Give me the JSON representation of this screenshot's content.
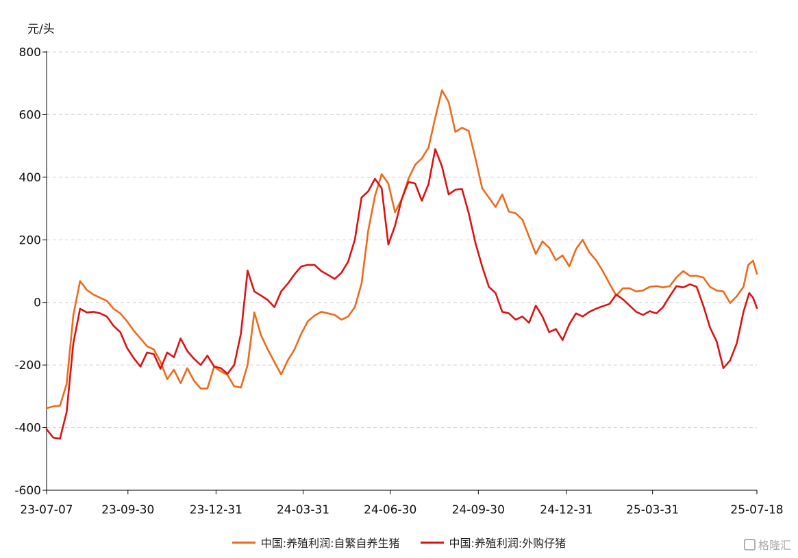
{
  "chart_data": {
    "type": "line",
    "unit_label": "元/头",
    "ylim": [
      -600,
      800
    ],
    "yticks": [
      800,
      600,
      400,
      200,
      0,
      -200,
      -400,
      -600
    ],
    "xlim": [
      "2023-07-07",
      "2025-07-18"
    ],
    "xticks": [
      {
        "date": "2023-07-07",
        "label": "23-07-07"
      },
      {
        "date": "2023-09-30",
        "label": "23-09-30"
      },
      {
        "date": "2023-12-31",
        "label": "23-12-31"
      },
      {
        "date": "2024-03-31",
        "label": "24-03-31"
      },
      {
        "date": "2024-06-30",
        "label": "24-06-30"
      },
      {
        "date": "2024-09-30",
        "label": "24-09-30"
      },
      {
        "date": "2024-12-31",
        "label": "24-12-31"
      },
      {
        "date": "2025-03-31",
        "label": "25-03-31"
      },
      {
        "date": "2025-07-18",
        "label": "25-07-18"
      }
    ],
    "grid": "horizontal-dashed",
    "legend_position": "bottom",
    "series": [
      {
        "name": "中国:养殖利润:自繁自养生猪",
        "color": "#ee6a1a",
        "points": [
          [
            "2023-07-07",
            -338
          ],
          [
            "2023-07-14",
            -332
          ],
          [
            "2023-07-21",
            -330
          ],
          [
            "2023-07-28",
            -260
          ],
          [
            "2023-08-04",
            -40
          ],
          [
            "2023-08-11",
            68
          ],
          [
            "2023-08-18",
            40
          ],
          [
            "2023-08-25",
            25
          ],
          [
            "2023-09-01",
            15
          ],
          [
            "2023-09-08",
            5
          ],
          [
            "2023-09-15",
            -20
          ],
          [
            "2023-09-22",
            -35
          ],
          [
            "2023-09-29",
            -60
          ],
          [
            "2023-10-06",
            -90
          ],
          [
            "2023-10-13",
            -115
          ],
          [
            "2023-10-20",
            -140
          ],
          [
            "2023-10-27",
            -150
          ],
          [
            "2023-11-03",
            -190
          ],
          [
            "2023-11-10",
            -245
          ],
          [
            "2023-11-17",
            -215
          ],
          [
            "2023-11-24",
            -258
          ],
          [
            "2023-12-01",
            -210
          ],
          [
            "2023-12-08",
            -250
          ],
          [
            "2023-12-15",
            -275
          ],
          [
            "2023-12-22",
            -275
          ],
          [
            "2023-12-29",
            -205
          ],
          [
            "2024-01-05",
            -220
          ],
          [
            "2024-01-12",
            -232
          ],
          [
            "2024-01-19",
            -268
          ],
          [
            "2024-01-26",
            -272
          ],
          [
            "2024-02-02",
            -200
          ],
          [
            "2024-02-09",
            -32
          ],
          [
            "2024-02-16",
            -105
          ],
          [
            "2024-02-23",
            -150
          ],
          [
            "2024-03-01",
            -190
          ],
          [
            "2024-03-08",
            -230
          ],
          [
            "2024-03-15",
            -185
          ],
          [
            "2024-03-22",
            -150
          ],
          [
            "2024-03-29",
            -100
          ],
          [
            "2024-04-05",
            -60
          ],
          [
            "2024-04-12",
            -42
          ],
          [
            "2024-04-19",
            -30
          ],
          [
            "2024-04-26",
            -35
          ],
          [
            "2024-05-03",
            -40
          ],
          [
            "2024-05-10",
            -55
          ],
          [
            "2024-05-17",
            -45
          ],
          [
            "2024-05-24",
            -15
          ],
          [
            "2024-05-31",
            60
          ],
          [
            "2024-06-07",
            230
          ],
          [
            "2024-06-14",
            340
          ],
          [
            "2024-06-21",
            410
          ],
          [
            "2024-06-28",
            380
          ],
          [
            "2024-07-05",
            288
          ],
          [
            "2024-07-12",
            330
          ],
          [
            "2024-07-19",
            395
          ],
          [
            "2024-07-26",
            440
          ],
          [
            "2024-08-02",
            460
          ],
          [
            "2024-08-09",
            495
          ],
          [
            "2024-08-16",
            590
          ],
          [
            "2024-08-23",
            678
          ],
          [
            "2024-08-30",
            640
          ],
          [
            "2024-09-06",
            545
          ],
          [
            "2024-09-13",
            558
          ],
          [
            "2024-09-20",
            548
          ],
          [
            "2024-09-27",
            460
          ],
          [
            "2024-10-04",
            365
          ],
          [
            "2024-10-11",
            335
          ],
          [
            "2024-10-18",
            305
          ],
          [
            "2024-10-25",
            345
          ],
          [
            "2024-11-01",
            290
          ],
          [
            "2024-11-08",
            285
          ],
          [
            "2024-11-15",
            265
          ],
          [
            "2024-11-22",
            210
          ],
          [
            "2024-11-29",
            155
          ],
          [
            "2024-12-06",
            195
          ],
          [
            "2024-12-13",
            175
          ],
          [
            "2024-12-20",
            135
          ],
          [
            "2024-12-27",
            150
          ],
          [
            "2025-01-03",
            115
          ],
          [
            "2025-01-10",
            170
          ],
          [
            "2025-01-17",
            200
          ],
          [
            "2025-01-24",
            160
          ],
          [
            "2025-01-31",
            135
          ],
          [
            "2025-02-07",
            100
          ],
          [
            "2025-02-14",
            60
          ],
          [
            "2025-02-21",
            22
          ],
          [
            "2025-02-28",
            45
          ],
          [
            "2025-03-07",
            45
          ],
          [
            "2025-03-14",
            35
          ],
          [
            "2025-03-21",
            38
          ],
          [
            "2025-03-28",
            50
          ],
          [
            "2025-04-04",
            52
          ],
          [
            "2025-04-11",
            48
          ],
          [
            "2025-04-18",
            52
          ],
          [
            "2025-04-25",
            80
          ],
          [
            "2025-05-02",
            100
          ],
          [
            "2025-05-09",
            85
          ],
          [
            "2025-05-16",
            85
          ],
          [
            "2025-05-23",
            80
          ],
          [
            "2025-05-30",
            50
          ],
          [
            "2025-06-06",
            38
          ],
          [
            "2025-06-13",
            35
          ],
          [
            "2025-06-20",
            -2
          ],
          [
            "2025-06-27",
            20
          ],
          [
            "2025-07-04",
            50
          ],
          [
            "2025-07-09",
            120
          ],
          [
            "2025-07-14",
            133
          ],
          [
            "2025-07-18",
            92
          ]
        ]
      },
      {
        "name": "中国:养殖利润:外购仔猪",
        "color": "#dd1111",
        "points": [
          [
            "2023-07-07",
            -405
          ],
          [
            "2023-07-14",
            -432
          ],
          [
            "2023-07-21",
            -435
          ],
          [
            "2023-07-28",
            -350
          ],
          [
            "2023-08-04",
            -130
          ],
          [
            "2023-08-11",
            -20
          ],
          [
            "2023-08-18",
            -32
          ],
          [
            "2023-08-25",
            -30
          ],
          [
            "2023-09-01",
            -35
          ],
          [
            "2023-09-08",
            -45
          ],
          [
            "2023-09-15",
            -75
          ],
          [
            "2023-09-22",
            -95
          ],
          [
            "2023-09-29",
            -145
          ],
          [
            "2023-10-06",
            -178
          ],
          [
            "2023-10-13",
            -205
          ],
          [
            "2023-10-20",
            -160
          ],
          [
            "2023-10-27",
            -165
          ],
          [
            "2023-11-03",
            -212
          ],
          [
            "2023-11-10",
            -160
          ],
          [
            "2023-11-17",
            -175
          ],
          [
            "2023-11-24",
            -115
          ],
          [
            "2023-12-01",
            -155
          ],
          [
            "2023-12-08",
            -180
          ],
          [
            "2023-12-15",
            -200
          ],
          [
            "2023-12-22",
            -170
          ],
          [
            "2023-12-29",
            -205
          ],
          [
            "2024-01-05",
            -210
          ],
          [
            "2024-01-12",
            -228
          ],
          [
            "2024-01-19",
            -200
          ],
          [
            "2024-01-26",
            -100
          ],
          [
            "2024-02-02",
            102
          ],
          [
            "2024-02-09",
            35
          ],
          [
            "2024-02-16",
            22
          ],
          [
            "2024-02-23",
            8
          ],
          [
            "2024-03-01",
            -15
          ],
          [
            "2024-03-08",
            35
          ],
          [
            "2024-03-15",
            60
          ],
          [
            "2024-03-22",
            90
          ],
          [
            "2024-03-29",
            115
          ],
          [
            "2024-04-05",
            120
          ],
          [
            "2024-04-12",
            120
          ],
          [
            "2024-04-19",
            100
          ],
          [
            "2024-04-26",
            88
          ],
          [
            "2024-05-03",
            75
          ],
          [
            "2024-05-10",
            95
          ],
          [
            "2024-05-17",
            130
          ],
          [
            "2024-05-24",
            200
          ],
          [
            "2024-05-31",
            335
          ],
          [
            "2024-06-07",
            355
          ],
          [
            "2024-06-14",
            395
          ],
          [
            "2024-06-21",
            365
          ],
          [
            "2024-06-28",
            185
          ],
          [
            "2024-07-05",
            245
          ],
          [
            "2024-07-12",
            330
          ],
          [
            "2024-07-19",
            385
          ],
          [
            "2024-07-26",
            380
          ],
          [
            "2024-08-02",
            325
          ],
          [
            "2024-08-09",
            378
          ],
          [
            "2024-08-16",
            490
          ],
          [
            "2024-08-23",
            435
          ],
          [
            "2024-08-30",
            345
          ],
          [
            "2024-09-06",
            360
          ],
          [
            "2024-09-13",
            362
          ],
          [
            "2024-09-20",
            285
          ],
          [
            "2024-09-27",
            190
          ],
          [
            "2024-10-04",
            115
          ],
          [
            "2024-10-11",
            50
          ],
          [
            "2024-10-18",
            30
          ],
          [
            "2024-10-25",
            -30
          ],
          [
            "2024-11-01",
            -35
          ],
          [
            "2024-11-08",
            -55
          ],
          [
            "2024-11-15",
            -45
          ],
          [
            "2024-11-22",
            -65
          ],
          [
            "2024-11-29",
            -10
          ],
          [
            "2024-12-06",
            -45
          ],
          [
            "2024-12-13",
            -95
          ],
          [
            "2024-12-20",
            -85
          ],
          [
            "2024-12-27",
            -120
          ],
          [
            "2025-01-03",
            -70
          ],
          [
            "2025-01-10",
            -35
          ],
          [
            "2025-01-17",
            -45
          ],
          [
            "2025-01-24",
            -30
          ],
          [
            "2025-01-31",
            -20
          ],
          [
            "2025-02-07",
            -12
          ],
          [
            "2025-02-14",
            -5
          ],
          [
            "2025-02-21",
            25
          ],
          [
            "2025-02-28",
            10
          ],
          [
            "2025-03-07",
            -10
          ],
          [
            "2025-03-14",
            -30
          ],
          [
            "2025-03-21",
            -40
          ],
          [
            "2025-03-28",
            -28
          ],
          [
            "2025-04-04",
            -35
          ],
          [
            "2025-04-11",
            -15
          ],
          [
            "2025-04-18",
            20
          ],
          [
            "2025-04-25",
            52
          ],
          [
            "2025-05-02",
            48
          ],
          [
            "2025-05-09",
            58
          ],
          [
            "2025-05-16",
            50
          ],
          [
            "2025-05-23",
            -10
          ],
          [
            "2025-05-30",
            -80
          ],
          [
            "2025-06-06",
            -125
          ],
          [
            "2025-06-13",
            -210
          ],
          [
            "2025-06-20",
            -185
          ],
          [
            "2025-06-27",
            -130
          ],
          [
            "2025-07-04",
            -30
          ],
          [
            "2025-07-10",
            30
          ],
          [
            "2025-07-14",
            15
          ],
          [
            "2025-07-18",
            -18
          ]
        ]
      }
    ]
  },
  "watermark": {
    "text": "格隆汇"
  }
}
